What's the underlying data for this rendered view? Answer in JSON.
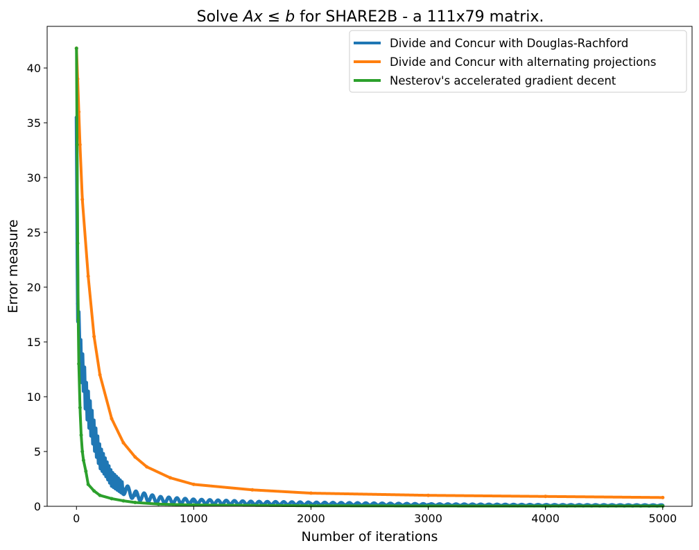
{
  "chart_data": {
    "type": "line",
    "title_prefix": "Solve ",
    "title_math_a": "Ax",
    "title_math_op": "≤",
    "title_math_b": "b",
    "title_suffix": " for SHARE2B - a 111x79 matrix.",
    "xlabel": "Number of iterations",
    "ylabel": "Error measure",
    "xlim": [
      -250,
      5250
    ],
    "ylim": [
      0,
      43.8
    ],
    "xticks": [
      0,
      1000,
      2000,
      3000,
      4000,
      5000
    ],
    "yticks": [
      0,
      5,
      10,
      15,
      20,
      25,
      30,
      35,
      40
    ],
    "grid": false,
    "legend_position": "top-right",
    "series": [
      {
        "name": "Divide and Concur with Douglas-Rachford",
        "color": "#1f77b4",
        "x": [
          0,
          10,
          20,
          30,
          40,
          60,
          80,
          100,
          150,
          200,
          250,
          300,
          400,
          500,
          700,
          1000,
          1500,
          2000,
          3000,
          4000,
          5000
        ],
        "y": [
          35.5,
          18.5,
          16.5,
          15.0,
          13.0,
          12.0,
          10.0,
          9.0,
          6.5,
          4.5,
          3.5,
          2.5,
          1.6,
          1.0,
          0.6,
          0.45,
          0.3,
          0.25,
          0.15,
          0.1,
          0.08
        ],
        "oscillation": [
          0,
          2.5,
          2.5,
          2.5,
          3.0,
          3.0,
          3.0,
          3.0,
          2.5,
          2.0,
          1.5,
          1.3,
          1.0,
          0.8,
          0.6,
          0.4,
          0.3,
          0.25,
          0.15,
          0.1,
          0.08
        ]
      },
      {
        "name": "Divide and Concur with alternating projections",
        "color": "#ff7f0e",
        "x": [
          0,
          10,
          20,
          30,
          50,
          100,
          150,
          200,
          300,
          400,
          500,
          600,
          800,
          1000,
          1500,
          2000,
          3000,
          4000,
          5000
        ],
        "y": [
          41.8,
          39.0,
          36.0,
          33.0,
          28.0,
          21.0,
          15.5,
          12.0,
          8.0,
          5.8,
          4.5,
          3.6,
          2.6,
          2.0,
          1.5,
          1.2,
          1.0,
          0.9,
          0.8
        ]
      },
      {
        "name": "Nesterov's accelerated gradient decent",
        "color": "#2ca02c",
        "x": [
          0,
          5,
          10,
          15,
          20,
          30,
          40,
          50,
          60,
          80,
          100,
          150,
          200,
          300,
          400,
          500,
          700,
          1000,
          2000,
          3000,
          4000,
          5000
        ],
        "y": [
          41.8,
          33.0,
          24.0,
          17.0,
          13.0,
          9.0,
          6.5,
          5.0,
          4.2,
          3.2,
          2.0,
          1.4,
          1.0,
          0.7,
          0.5,
          0.35,
          0.2,
          0.12,
          0.05,
          0.03,
          0.02,
          0.02
        ]
      }
    ]
  }
}
